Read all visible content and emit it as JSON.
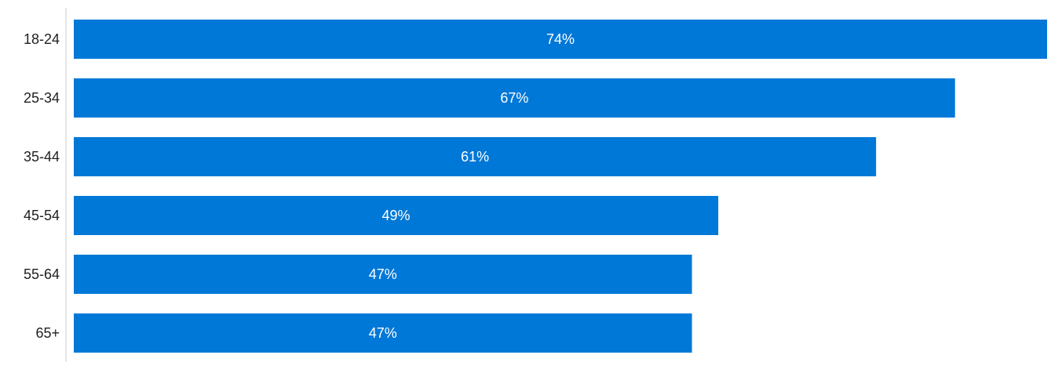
{
  "chart_data": {
    "type": "bar",
    "orientation": "horizontal",
    "categories": [
      "18-24",
      "25-34",
      "35-44",
      "45-54",
      "55-64",
      "65+"
    ],
    "values": [
      74,
      67,
      61,
      49,
      47,
      47
    ],
    "value_labels": [
      "74%",
      "67%",
      "61%",
      "49%",
      "47%",
      "47%"
    ],
    "title": "",
    "xlabel": "",
    "ylabel": "",
    "xlim": [
      0,
      74
    ],
    "grid": false,
    "legend": "none",
    "bar_color": "#0078d7",
    "axis_color": "#c8c8c8",
    "label_color": "#1f1f1f",
    "value_label_color": "#ffffff"
  }
}
